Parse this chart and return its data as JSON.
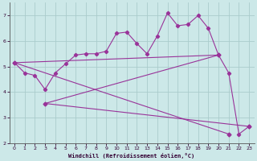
{
  "xlabel": "Windchill (Refroidissement éolien,°C)",
  "bg_color": "#cce8e8",
  "grid_color": "#aacccc",
  "line_color": "#993399",
  "xlim": [
    -0.5,
    23.5
  ],
  "ylim": [
    2.0,
    7.5
  ],
  "xticks": [
    0,
    1,
    2,
    3,
    4,
    5,
    6,
    7,
    8,
    9,
    10,
    11,
    12,
    13,
    14,
    15,
    16,
    17,
    18,
    19,
    20,
    21,
    22,
    23
  ],
  "yticks": [
    2,
    3,
    4,
    5,
    6,
    7
  ],
  "main_x": [
    0,
    1,
    2,
    3,
    4,
    5,
    6,
    7,
    8,
    9,
    10,
    11,
    12,
    13,
    14,
    15,
    16,
    17,
    18,
    19,
    20,
    21,
    22,
    23
  ],
  "main_y": [
    5.15,
    4.75,
    4.65,
    4.1,
    4.75,
    5.1,
    5.45,
    5.5,
    5.5,
    5.6,
    6.3,
    6.35,
    5.9,
    5.5,
    6.2,
    7.1,
    6.6,
    6.65,
    7.0,
    6.5,
    5.45,
    4.75,
    2.35,
    2.65
  ],
  "fan_lines": [
    {
      "x": [
        0,
        20
      ],
      "y": [
        5.15,
        5.45
      ]
    },
    {
      "x": [
        0,
        21
      ],
      "y": [
        5.15,
        2.35
      ]
    },
    {
      "x": [
        3,
        20
      ],
      "y": [
        3.55,
        5.45
      ]
    },
    {
      "x": [
        3,
        23
      ],
      "y": [
        3.55,
        2.65
      ]
    }
  ],
  "fan_markers": [
    [
      0,
      5.15
    ],
    [
      3,
      3.55
    ],
    [
      20,
      5.45
    ],
    [
      21,
      2.35
    ],
    [
      23,
      2.65
    ]
  ]
}
